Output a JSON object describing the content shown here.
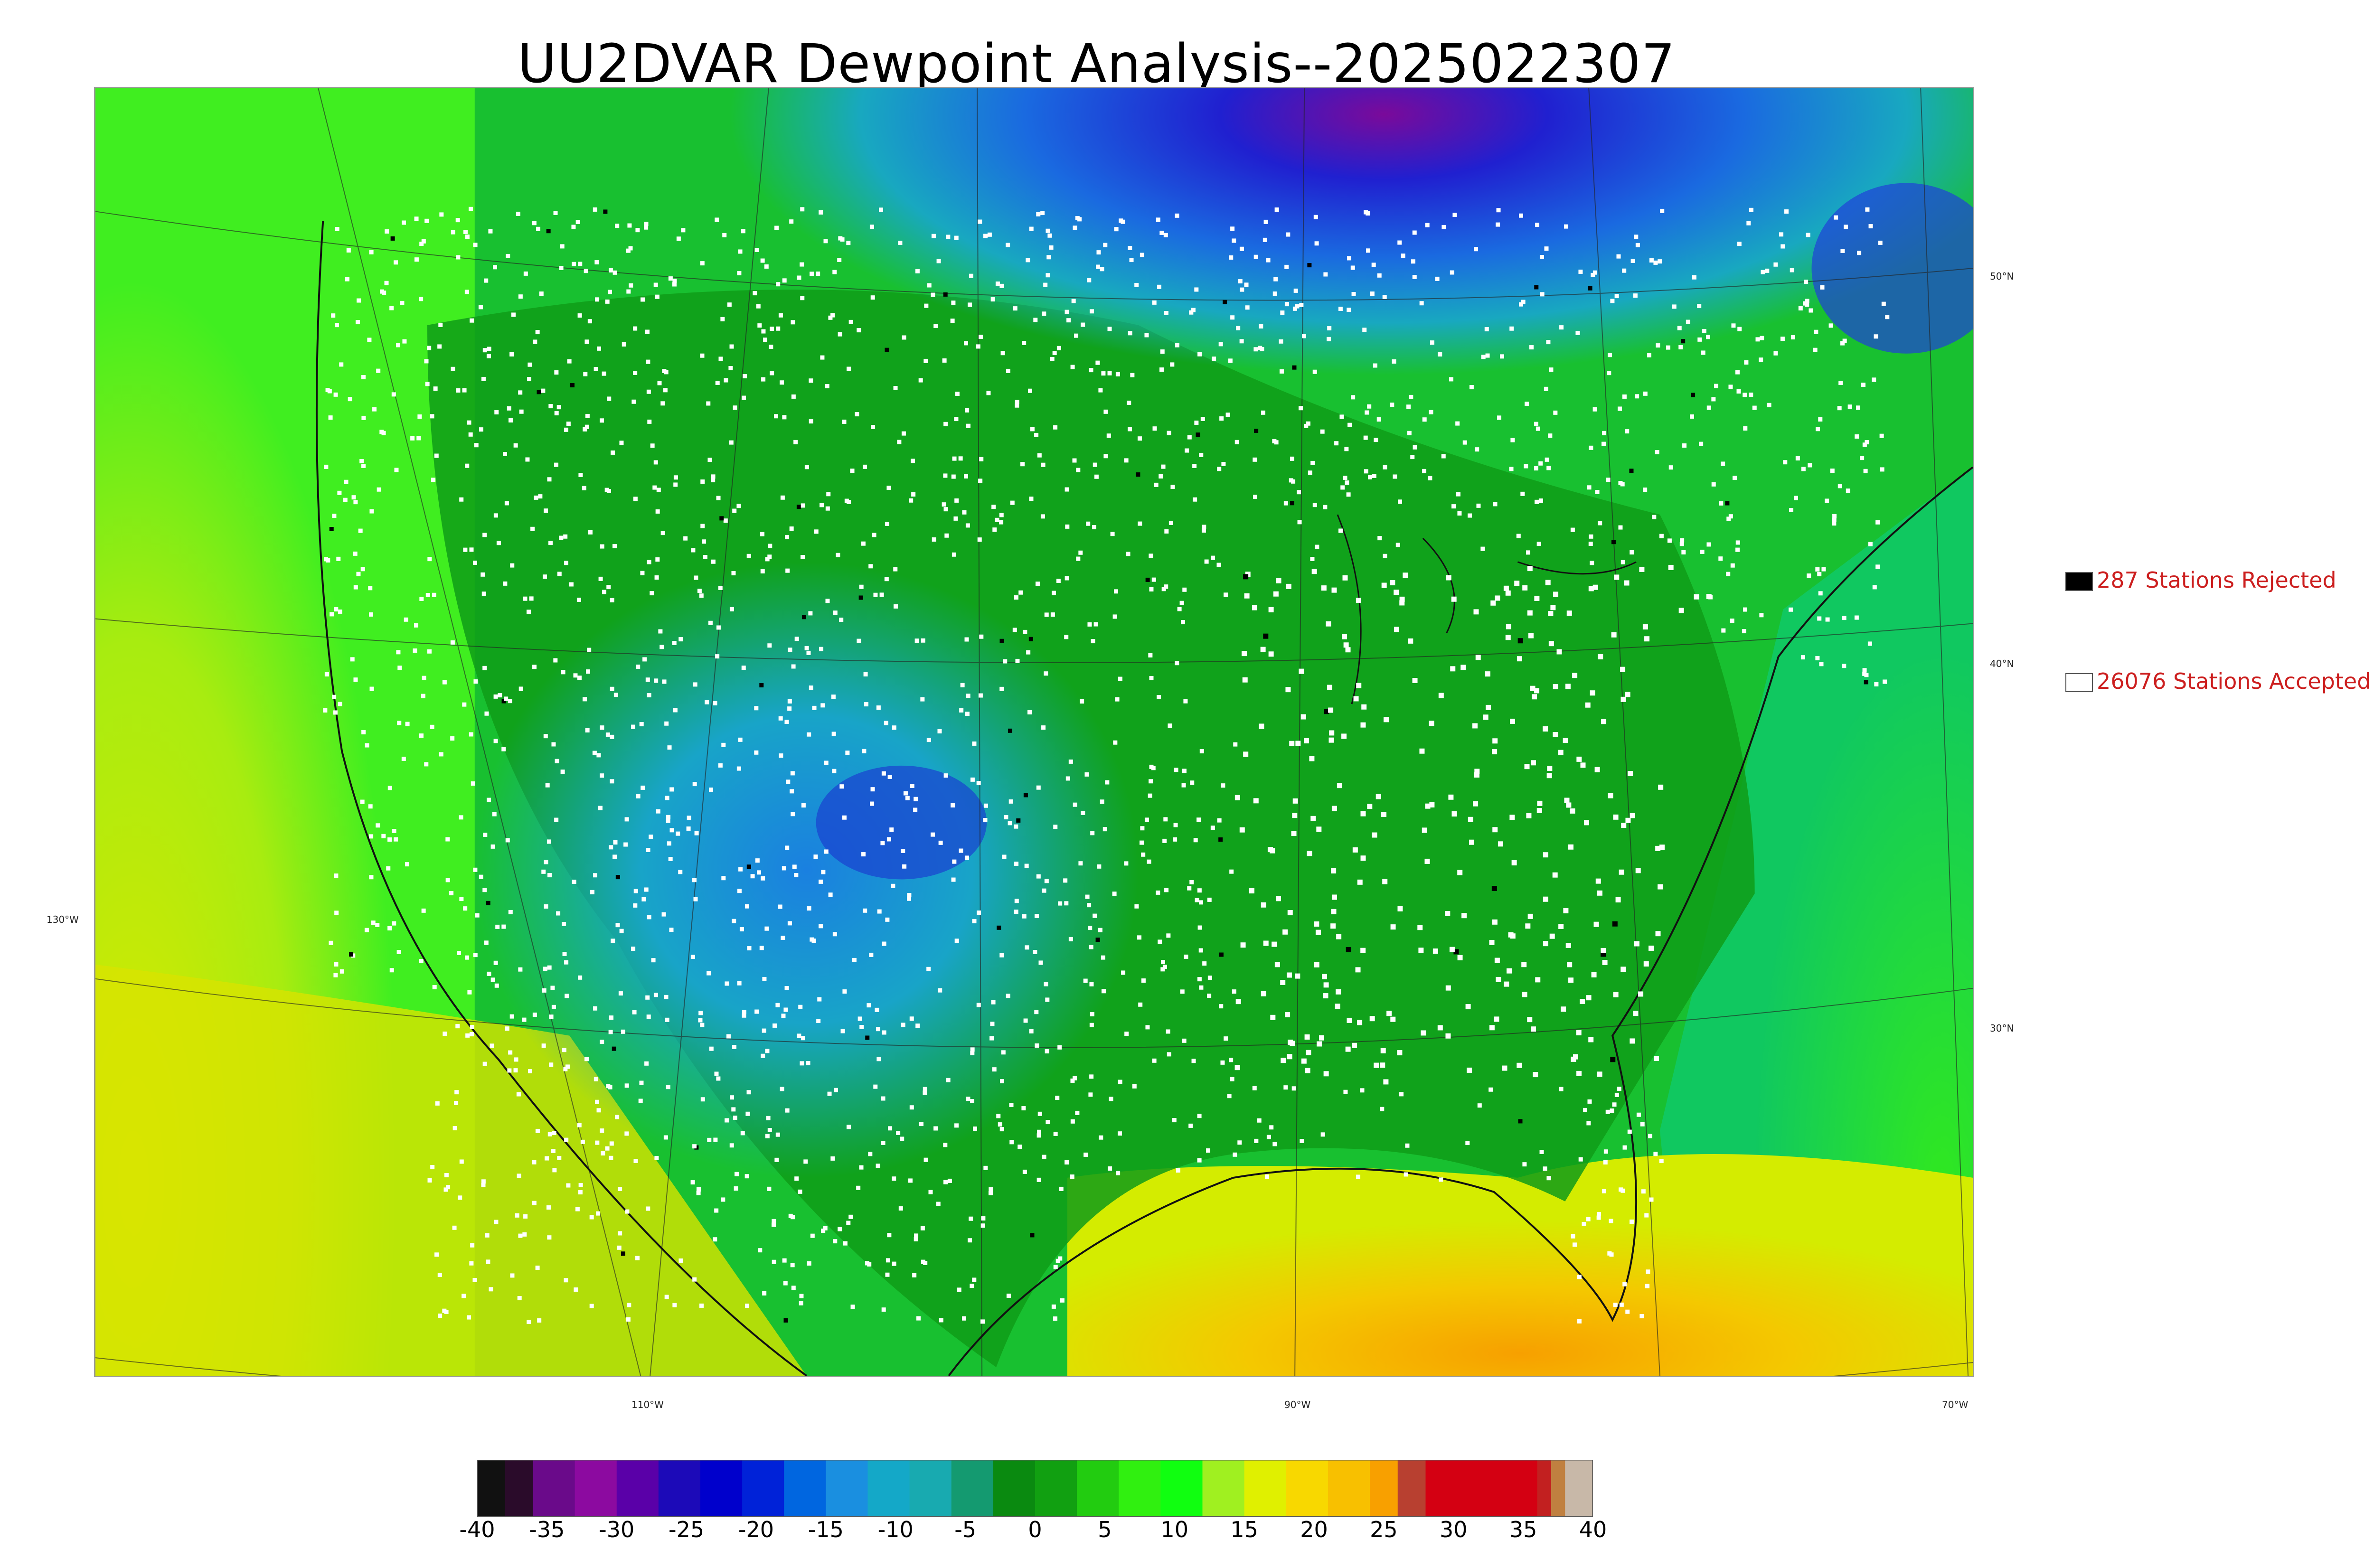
{
  "title": "UU2DVAR Dewpoint Analysis--2025022307",
  "legend": {
    "rejected_label": "287 Stations Rejected",
    "accepted_label": "26076 Stations Accepted",
    "rejected_color": "#000000",
    "accepted_color": "#ffffff"
  },
  "map_labels": {
    "lat_50": "50°N",
    "lat_40": "40°N",
    "lat_30": "30°N",
    "lon_130": "130°W",
    "lon_110": "110°W",
    "lon_90": "90°W",
    "lon_70": "70°W"
  },
  "colorbar": {
    "ticks": [
      "-40",
      "-35",
      "-30",
      "-25",
      "-20",
      "-15",
      "-10",
      "-5",
      "0",
      "5",
      "10",
      "15",
      "20",
      "25",
      "30",
      "35",
      "40"
    ],
    "colors": {
      "-40": "#111111",
      "-38": "#2a0b2a",
      "-36": "#6a0a8a",
      "-33": "#8c0aa0",
      "-30": "#5a00a8",
      "-27": "#1c0ab8",
      "-24": "#0000cc",
      "-21": "#0022d8",
      "-18": "#0066e0",
      "-15": "#1a8fe0",
      "-12": "#14a8c8",
      "-9": "#18aab0",
      "-6": "#149a70",
      "-3": "#0a8a10",
      "0": "#11a011",
      "3": "#22cc10",
      "6": "#30f010",
      "9": "#10ff10",
      "12": "#a0f020",
      "15": "#e0f000",
      "18": "#f8d800",
      "21": "#f8c000",
      "24": "#f8a000",
      "26": "#b84030",
      "28": "#d40012",
      "34": "#d40012",
      "36": "#c22020",
      "37": "#c08040",
      "38": "#c8b8a8",
      "40": "#d8d8d8"
    }
  }
}
